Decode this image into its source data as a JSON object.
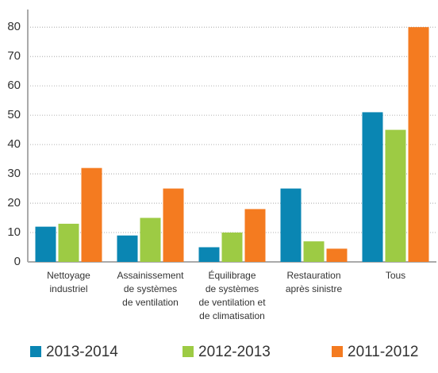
{
  "chart_data": {
    "type": "bar",
    "categories": [
      [
        "Nettoyage",
        "industriel"
      ],
      [
        "Assainissement",
        "de systèmes",
        "de ventilation"
      ],
      [
        "Équilibrage",
        "de systèmes",
        "de ventilation et",
        "de climatisation"
      ],
      [
        "Restauration",
        "après sinistre"
      ],
      [
        "Tous"
      ]
    ],
    "series": [
      {
        "name": "2013-2014",
        "color": "#0a86b3",
        "values": [
          12,
          9,
          5,
          25,
          51
        ]
      },
      {
        "name": "2012-2013",
        "color": "#9dcb44",
        "values": [
          13,
          15,
          10,
          7,
          45
        ]
      },
      {
        "name": "2011-2012",
        "color": "#f47b20",
        "values": [
          32,
          25,
          18,
          4.5,
          80
        ]
      }
    ],
    "ylim": [
      0,
      86
    ],
    "yticks": [
      0,
      10,
      20,
      30,
      40,
      50,
      60,
      70,
      80
    ],
    "grid": true,
    "legend": "bottom"
  }
}
